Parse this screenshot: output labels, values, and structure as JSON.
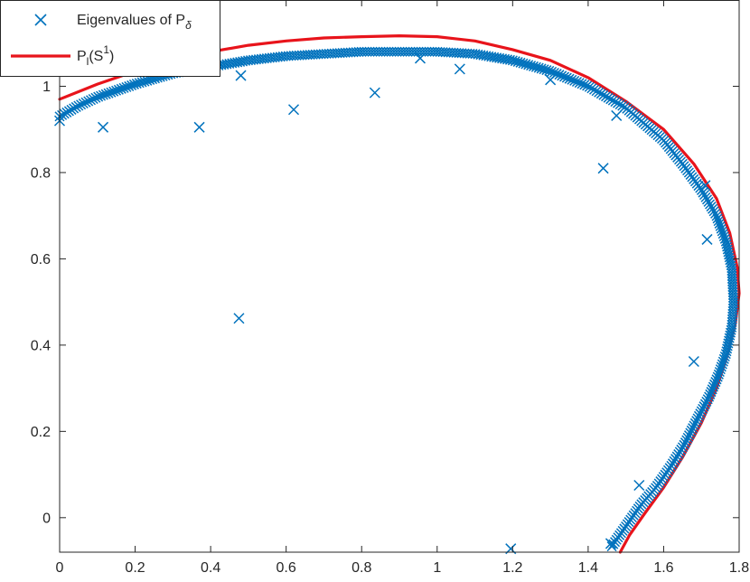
{
  "colors": {
    "eigen_marker": "#0072BD",
    "curve": "#E8141B",
    "axes": "#262626",
    "background": "#FFFFFF"
  },
  "chart_data": {
    "type": "scatter",
    "title": "",
    "xlabel": "",
    "ylabel": "",
    "xlim": [
      0,
      1.8
    ],
    "ylim": [
      -0.08,
      1.2
    ],
    "grid": false,
    "x_ticks": [
      0,
      0.2,
      0.4,
      0.6,
      0.8,
      1,
      1.2,
      1.4,
      1.6,
      1.8
    ],
    "x_tick_labels": [
      "0",
      "0.2",
      "0.4",
      "0.6",
      "0.8",
      "1",
      "1.2",
      "1.4",
      "1.6",
      "1.8"
    ],
    "y_ticks": [
      0,
      0.2,
      0.4,
      0.6,
      0.8,
      1
    ],
    "y_tick_labels": [
      "0",
      "0.2",
      "0.4",
      "0.6",
      "0.8",
      "1"
    ],
    "legend": {
      "placement": "top-left",
      "entries": [
        {
          "base": "Eigenvalues of P",
          "sub": "δ",
          "sup": "",
          "tail": "",
          "marker": "x"
        },
        {
          "base": "P",
          "sub": "l",
          "sup": "1",
          "mid": "(S",
          "tail": ")",
          "marker": "line"
        }
      ]
    },
    "series": [
      {
        "marker": "x",
        "dense_band": [
          [
            0.0,
            0.93
          ],
          [
            0.05,
            0.955
          ],
          [
            0.1,
            0.975
          ],
          [
            0.15,
            0.99
          ],
          [
            0.2,
            1.005
          ],
          [
            0.3,
            1.03
          ],
          [
            0.4,
            1.045
          ],
          [
            0.5,
            1.06
          ],
          [
            0.6,
            1.07
          ],
          [
            0.7,
            1.075
          ],
          [
            0.8,
            1.08
          ],
          [
            0.9,
            1.08
          ],
          [
            1.0,
            1.08
          ],
          [
            1.1,
            1.075
          ],
          [
            1.2,
            1.06
          ],
          [
            1.3,
            1.035
          ],
          [
            1.4,
            1.0
          ],
          [
            1.5,
            0.95
          ],
          [
            1.6,
            0.875
          ],
          [
            1.65,
            0.82
          ],
          [
            1.7,
            0.76
          ],
          [
            1.74,
            0.7
          ],
          [
            1.765,
            0.64
          ],
          [
            1.78,
            0.58
          ],
          [
            1.785,
            0.5
          ],
          [
            1.78,
            0.44
          ],
          [
            1.765,
            0.38
          ],
          [
            1.745,
            0.33
          ],
          [
            1.72,
            0.28
          ],
          [
            1.69,
            0.23
          ],
          [
            1.655,
            0.17
          ],
          [
            1.62,
            0.12
          ],
          [
            1.58,
            0.07
          ],
          [
            1.54,
            0.03
          ],
          [
            1.5,
            -0.02
          ],
          [
            1.46,
            -0.07
          ]
        ],
        "outliers": [
          [
            0.0,
            0.92
          ],
          [
            0.115,
            0.905
          ],
          [
            0.37,
            0.905
          ],
          [
            0.475,
            0.462
          ],
          [
            0.48,
            1.025
          ],
          [
            0.62,
            0.946
          ],
          [
            0.835,
            0.985
          ],
          [
            0.955,
            1.065
          ],
          [
            1.06,
            1.04
          ],
          [
            1.195,
            -0.072
          ],
          [
            1.3,
            1.015
          ],
          [
            1.44,
            0.81
          ],
          [
            1.475,
            0.932
          ],
          [
            1.535,
            0.075
          ],
          [
            1.68,
            0.362
          ],
          [
            1.715,
            0.645
          ],
          [
            1.71,
            0.77
          ],
          [
            1.46,
            -0.06
          ]
        ]
      },
      {
        "marker": "line",
        "points": [
          [
            0.0,
            0.97
          ],
          [
            0.1,
            1.005
          ],
          [
            0.2,
            1.035
          ],
          [
            0.3,
            1.06
          ],
          [
            0.4,
            1.08
          ],
          [
            0.5,
            1.095
          ],
          [
            0.6,
            1.105
          ],
          [
            0.7,
            1.112
          ],
          [
            0.8,
            1.115
          ],
          [
            0.9,
            1.117
          ],
          [
            1.0,
            1.115
          ],
          [
            1.1,
            1.105
          ],
          [
            1.2,
            1.085
          ],
          [
            1.3,
            1.06
          ],
          [
            1.4,
            1.02
          ],
          [
            1.5,
            0.965
          ],
          [
            1.6,
            0.9
          ],
          [
            1.68,
            0.82
          ],
          [
            1.74,
            0.74
          ],
          [
            1.775,
            0.66
          ],
          [
            1.795,
            0.58
          ],
          [
            1.8,
            0.52
          ],
          [
            1.79,
            0.45
          ],
          [
            1.77,
            0.38
          ],
          [
            1.74,
            0.3
          ],
          [
            1.7,
            0.22
          ],
          [
            1.65,
            0.14
          ],
          [
            1.6,
            0.07
          ],
          [
            1.55,
            0.01
          ],
          [
            1.51,
            -0.04
          ],
          [
            1.485,
            -0.08
          ]
        ]
      }
    ]
  }
}
